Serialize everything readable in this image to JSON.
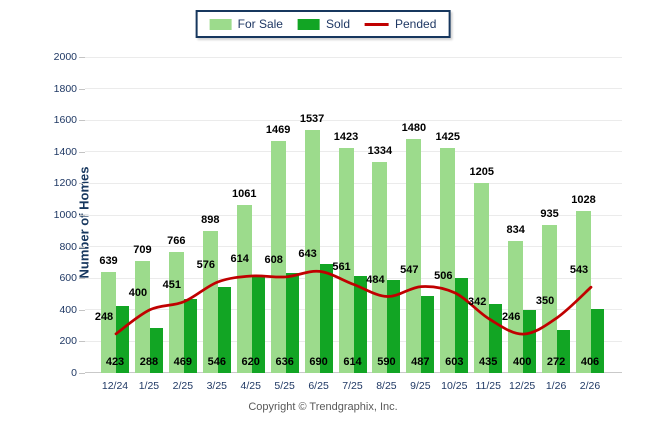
{
  "legend": {
    "items": [
      {
        "label": "For Sale",
        "swatch": "bar",
        "color": "#9CDB8C"
      },
      {
        "label": "Sold",
        "swatch": "bar",
        "color": "#12A524"
      },
      {
        "label": "Pended",
        "swatch": "line",
        "color": "#C00000"
      }
    ]
  },
  "footer": "Copyright © Trendgraphix, Inc.",
  "colors": {
    "for_sale": "#9CDB8C",
    "sold": "#12A524",
    "pended": "#C00000",
    "axis_text": "#1F3864",
    "gridline": "#EBEBEB"
  },
  "chart_data": {
    "type": "bar",
    "title": "",
    "xlabel": "",
    "ylabel": "Number of Homes",
    "ylim": [
      0,
      2000
    ],
    "yticks": [
      0,
      200,
      400,
      600,
      800,
      1000,
      1200,
      1400,
      1600,
      1800,
      2000
    ],
    "grid": true,
    "legend_position": "top",
    "categories": [
      "12/24",
      "1/25",
      "2/25",
      "3/25",
      "4/25",
      "5/25",
      "6/25",
      "7/25",
      "8/25",
      "9/25",
      "10/25",
      "11/25",
      "12/25",
      "1/26",
      "2/26"
    ],
    "series": [
      {
        "name": "For Sale",
        "render": "bar",
        "color": "#9CDB8C",
        "values": [
          639,
          709,
          766,
          898,
          1061,
          1469,
          1537,
          1423,
          1334,
          1480,
          1425,
          1205,
          834,
          935,
          1028
        ]
      },
      {
        "name": "Sold",
        "render": "bar",
        "color": "#12A524",
        "values": [
          423,
          288,
          469,
          546,
          620,
          636,
          690,
          614,
          590,
          487,
          603,
          435,
          400,
          272,
          406
        ]
      },
      {
        "name": "Pended",
        "render": "line",
        "color": "#C00000",
        "values": [
          248,
          400,
          451,
          576,
          614,
          608,
          643,
          561,
          484,
          547,
          506,
          342,
          246,
          350,
          543
        ]
      }
    ]
  }
}
